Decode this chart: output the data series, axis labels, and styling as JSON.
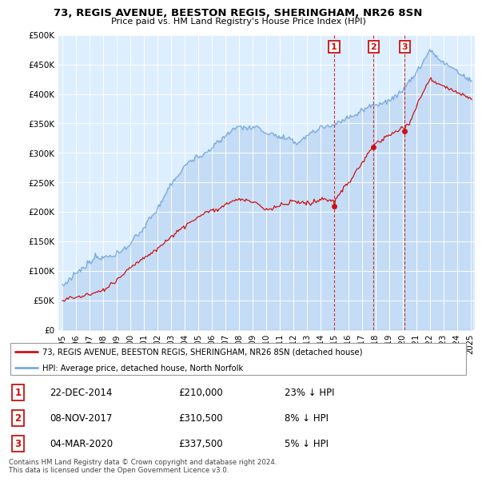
{
  "title": "73, REGIS AVENUE, BEESTON REGIS, SHERINGHAM, NR26 8SN",
  "subtitle": "Price paid vs. HM Land Registry's House Price Index (HPI)",
  "legend_line1": "73, REGIS AVENUE, BEESTON REGIS, SHERINGHAM, NR26 8SN (detached house)",
  "legend_line2": "HPI: Average price, detached house, North Norfolk",
  "transaction_years": [
    2014.97,
    2017.86,
    2020.17
  ],
  "transaction_values": [
    210000,
    310500,
    337500
  ],
  "transaction_labels": [
    "1",
    "2",
    "3"
  ],
  "transaction_dates": [
    "22-DEC-2014",
    "08-NOV-2017",
    "04-MAR-2020"
  ],
  "transaction_prices": [
    "£210,000",
    "£310,500",
    "£337,500"
  ],
  "transaction_pcts": [
    "23% ↓ HPI",
    "8% ↓ HPI",
    "5% ↓ HPI"
  ],
  "hpi_color": "#7aaadd",
  "price_color": "#cc1111",
  "dashed_color": "#cc3333",
  "background_color": "#ddeeff",
  "ylim": [
    0,
    500000
  ],
  "yticks": [
    0,
    50000,
    100000,
    150000,
    200000,
    250000,
    300000,
    350000,
    400000,
    450000,
    500000
  ],
  "xstart": 1995,
  "xend": 2025,
  "footer": "Contains HM Land Registry data © Crown copyright and database right 2024.\nThis data is licensed under the Open Government Licence v3.0."
}
